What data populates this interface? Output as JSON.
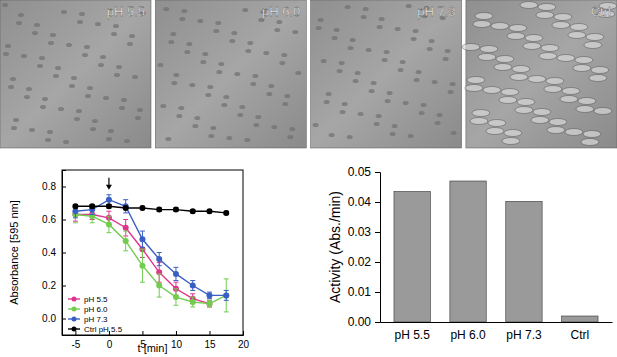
{
  "image_panels": {
    "labels": [
      "pH 5.5",
      "pH 6.0",
      "pH 7.3",
      "Ctrl"
    ]
  },
  "chart_data": [
    {
      "type": "line",
      "x_label": "t [min]",
      "y_label": "Absorbance [595 nm]",
      "x": [
        -5,
        -2.5,
        0,
        2.5,
        5,
        7.5,
        10,
        12.5,
        15,
        17.5
      ],
      "series": [
        {
          "name": "pH 5.5",
          "color": "#e0348c",
          "marker": "circle",
          "values": [
            0.63,
            0.63,
            0.61,
            0.55,
            0.42,
            0.28,
            0.18,
            0.12,
            0.09,
            null
          ],
          "errors": [
            0.04,
            0.03,
            0.04,
            0.05,
            0.05,
            0.06,
            0.04,
            0.03,
            0.02,
            null
          ]
        },
        {
          "name": "pH 6.0",
          "color": "#72cc4f",
          "marker": "circle",
          "values": [
            0.63,
            0.62,
            0.57,
            0.47,
            0.32,
            0.2,
            0.13,
            0.1,
            0.09,
            0.14
          ],
          "errors": [
            0.05,
            0.04,
            0.05,
            0.06,
            0.1,
            0.07,
            0.05,
            0.03,
            0.02,
            0.1
          ]
        },
        {
          "name": "pH 7.3",
          "color": "#3a5fc4",
          "marker": "circle",
          "values": [
            0.65,
            0.66,
            0.72,
            0.68,
            0.48,
            0.36,
            0.27,
            0.2,
            0.14,
            0.14
          ],
          "errors": [
            0.04,
            0.03,
            0.03,
            0.04,
            0.05,
            0.04,
            0.04,
            0.03,
            0.02,
            0.03
          ]
        },
        {
          "name": "Ctrl pH 5.5",
          "color": "#000000",
          "marker": "circle",
          "values": [
            0.68,
            0.68,
            0.68,
            0.67,
            0.67,
            0.66,
            0.66,
            0.65,
            0.65,
            0.64
          ],
          "errors": [
            0.01,
            0.01,
            0.01,
            0.01,
            0.01,
            0.01,
            0.01,
            0.01,
            0.01,
            0.01
          ]
        }
      ],
      "annotations": [
        {
          "x": 0,
          "y": 0.78
        }
      ],
      "xlim": [
        -7,
        20
      ],
      "xticks": [
        -5,
        0,
        5,
        10,
        15,
        20
      ],
      "ylim": [
        -0.1,
        0.9
      ],
      "yticks": [
        {
          "value": 0,
          "label": "0.0"
        },
        0.2,
        0.4,
        0.6,
        0.8
      ],
      "legend": "lower left",
      "grid": false
    },
    {
      "type": "bar",
      "y_label": "Activity (Abs./min)",
      "categories": [
        "pH 5.5",
        "pH 6.0",
        "pH 7.3",
        "Ctrl"
      ],
      "values": [
        0.0435,
        0.047,
        0.0402,
        0.002
      ],
      "color": "#9a9a9a",
      "ylim": [
        0,
        0.05
      ],
      "yticks": [
        {
          "value": 0,
          "label": "0.00"
        },
        {
          "value": 0.01,
          "label": "0.01"
        },
        {
          "value": 0.02,
          "label": "0.02"
        },
        {
          "value": 0.03,
          "label": "0.03"
        },
        {
          "value": 0.04,
          "label": "0.04"
        },
        {
          "value": 0.05,
          "label": "0.05"
        }
      ],
      "grid": false
    }
  ]
}
